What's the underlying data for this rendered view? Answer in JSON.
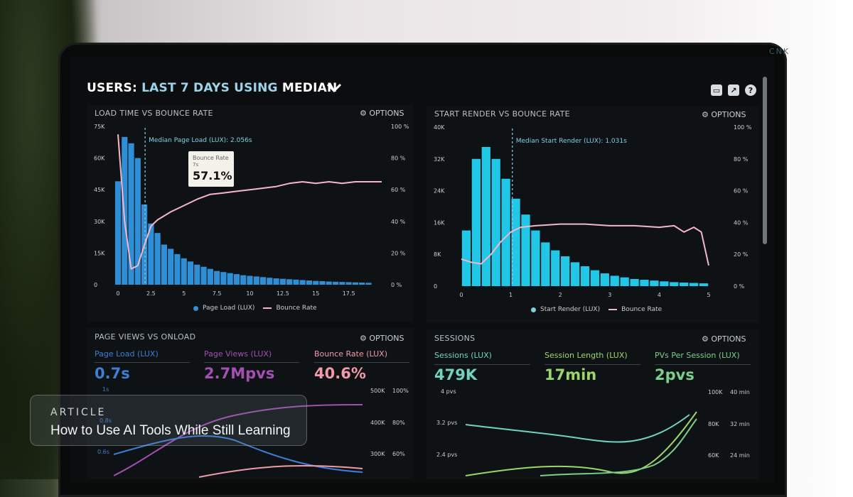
{
  "dashboard": {
    "title_prefix": "USERS:",
    "title_period": "LAST 7 DAYS",
    "title_using": "USING",
    "title_method": "MEDIAN"
  },
  "panels": {
    "load_bounce": {
      "title": "LOAD TIME VS BOUNCE RATE",
      "options_label": "OPTIONS",
      "median_label": "Median Page Load (LUX): 2.056s",
      "legend_series1": "Page Load (LUX)",
      "legend_series2": "Bounce Rate",
      "tooltip": {
        "label": "Bounce Rate",
        "x": "7s",
        "value": "57.1%"
      }
    },
    "render_bounce": {
      "title": "START RENDER VS BOUNCE RATE",
      "options_label": "OPTIONS",
      "median_label": "Median Start Render (LUX): 1.031s",
      "legend_series1": "Start Render (LUX)",
      "legend_series2": "Bounce Rate"
    },
    "pageviews_onload": {
      "title": "PAGE VIEWS VS ONLOAD",
      "options_label": "OPTIONS",
      "metrics": [
        {
          "label": "Page Load (LUX)",
          "value": "0.7s",
          "color": "#3d7fd6"
        },
        {
          "label": "Page Views (LUX)",
          "value": "2.7Mpvs",
          "color": "#a34fb3"
        },
        {
          "label": "Bounce Rate (LUX)",
          "value": "40.6%",
          "color": "#f29aa8"
        }
      ],
      "left_axis": [
        "1s",
        "0.8s",
        "0.6s"
      ],
      "right_axis_views": [
        "500K",
        "400K",
        "300K"
      ],
      "right_axis_pct": [
        "100%",
        "80%",
        "60%"
      ]
    },
    "sessions": {
      "title": "SESSIONS",
      "options_label": "OPTIONS",
      "metrics": [
        {
          "label": "Sessions (LUX)",
          "value": "479K",
          "color": "#6fd3c0"
        },
        {
          "label": "Session Length (LUX)",
          "value": "17min",
          "color": "#9bd66a"
        },
        {
          "label": "PVs Per Session (LUX)",
          "value": "2pvs",
          "color": "#7bcf88"
        }
      ],
      "left_axis": [
        "4 pvs",
        "3.2 pvs",
        "2.4 pvs"
      ],
      "right_axis_sessions": [
        "100K",
        "80K",
        "60K"
      ],
      "right_axis_min": [
        "40 min",
        "32 min",
        "24 min"
      ]
    }
  },
  "chart_data": [
    {
      "type": "bar",
      "title": "LOAD TIME VS BOUNCE RATE",
      "x_ticks": [
        "0",
        "2.5",
        "5",
        "7.5",
        "10",
        "12.5",
        "15",
        "17.5"
      ],
      "y_ticks_left": [
        "75K",
        "60K",
        "45K",
        "30K",
        "15K",
        "0"
      ],
      "y_ticks_right": [
        "100 %",
        "80 %",
        "60 %",
        "40 %",
        "20 %",
        "0 %"
      ],
      "xlim": [
        0,
        20
      ],
      "ylim": [
        0,
        75000
      ],
      "x": [
        0,
        0.5,
        1,
        1.5,
        2,
        2.5,
        3,
        3.5,
        4,
        4.5,
        5,
        5.5,
        6,
        6.5,
        7,
        7.5,
        8,
        8.5,
        9,
        9.5,
        10,
        10.5,
        11,
        11.5,
        12,
        12.5,
        13,
        13.5,
        14,
        14.5,
        15,
        15.5,
        16,
        16.5,
        17,
        17.5,
        18,
        18.5,
        19
      ],
      "series": [
        {
          "name": "Page Load (LUX)",
          "color": "#2f8fd6",
          "values": [
            49000,
            70000,
            67000,
            60000,
            38000,
            29000,
            24500,
            19000,
            17000,
            14500,
            12500,
            11000,
            9500,
            8500,
            7500,
            6500,
            6000,
            5500,
            5000,
            4500,
            4200,
            3900,
            3600,
            3300,
            3000,
            2800,
            2600,
            2400,
            2200,
            2000,
            1800,
            1700,
            1500,
            1400,
            1300,
            1200,
            1100,
            1000,
            900
          ]
        },
        {
          "name": "Bounce Rate",
          "color": "#f6b6c8",
          "points": [
            [
              0,
              95
            ],
            [
              0.5,
              40
            ],
            [
              1,
              10
            ],
            [
              1.5,
              12
            ],
            [
              2,
              25
            ],
            [
              2.5,
              37
            ],
            [
              3,
              41
            ],
            [
              4,
              46
            ],
            [
              5,
              50
            ],
            [
              6,
              54
            ],
            [
              7,
              57.1
            ],
            [
              8,
              58
            ],
            [
              9,
              59
            ],
            [
              10,
              60
            ],
            [
              11,
              61
            ],
            [
              12,
              62
            ],
            [
              13,
              64
            ],
            [
              14,
              65
            ],
            [
              15,
              64
            ],
            [
              16,
              65
            ],
            [
              17,
              64
            ],
            [
              18,
              65
            ],
            [
              19,
              65
            ],
            [
              20,
              65
            ]
          ]
        }
      ],
      "median_x": 2.056
    },
    {
      "type": "bar",
      "title": "START RENDER VS BOUNCE RATE",
      "x_ticks": [
        "0",
        "1",
        "2",
        "3",
        "4",
        "5"
      ],
      "y_ticks_left": [
        "40K",
        "32K",
        "24K",
        "16K",
        "8K",
        "0"
      ],
      "y_ticks_right": [
        "100 %",
        "80 %",
        "60 %",
        "40 %",
        "20 %",
        "0 %"
      ],
      "xlim": [
        0,
        5
      ],
      "ylim": [
        0,
        40000
      ],
      "x": [
        0.1,
        0.3,
        0.5,
        0.7,
        0.9,
        1.1,
        1.3,
        1.5,
        1.7,
        1.9,
        2.1,
        2.3,
        2.5,
        2.7,
        2.9,
        3.1,
        3.3,
        3.5,
        3.7,
        3.9,
        4.1,
        4.3,
        4.5,
        4.7,
        4.9
      ],
      "series": [
        {
          "name": "Start Render (LUX)",
          "color": "#21c7e6",
          "values": [
            14000,
            32000,
            35000,
            32000,
            27000,
            22000,
            18000,
            14000,
            11000,
            9000,
            7500,
            6000,
            5000,
            4000,
            3200,
            2600,
            2200,
            1800,
            1600,
            1400,
            1200,
            1000,
            900,
            800,
            700
          ]
        },
        {
          "name": "Bounce Rate",
          "color": "#f6b6c8",
          "points": [
            [
              0,
              17
            ],
            [
              0.2,
              15
            ],
            [
              0.4,
              14
            ],
            [
              0.6,
              20
            ],
            [
              0.8,
              28
            ],
            [
              1,
              34
            ],
            [
              1.2,
              37
            ],
            [
              1.5,
              38
            ],
            [
              2,
              39
            ],
            [
              2.5,
              39
            ],
            [
              3,
              38
            ],
            [
              3.5,
              38
            ],
            [
              4,
              37
            ],
            [
              4.3,
              38
            ],
            [
              4.5,
              34
            ],
            [
              4.7,
              37
            ],
            [
              4.85,
              34
            ],
            [
              5,
              13
            ]
          ]
        }
      ],
      "median_x": 1.031
    }
  ],
  "overlay": {
    "category": "ARTICLE",
    "headline": "How to Use AI Tools While Still Learning"
  }
}
